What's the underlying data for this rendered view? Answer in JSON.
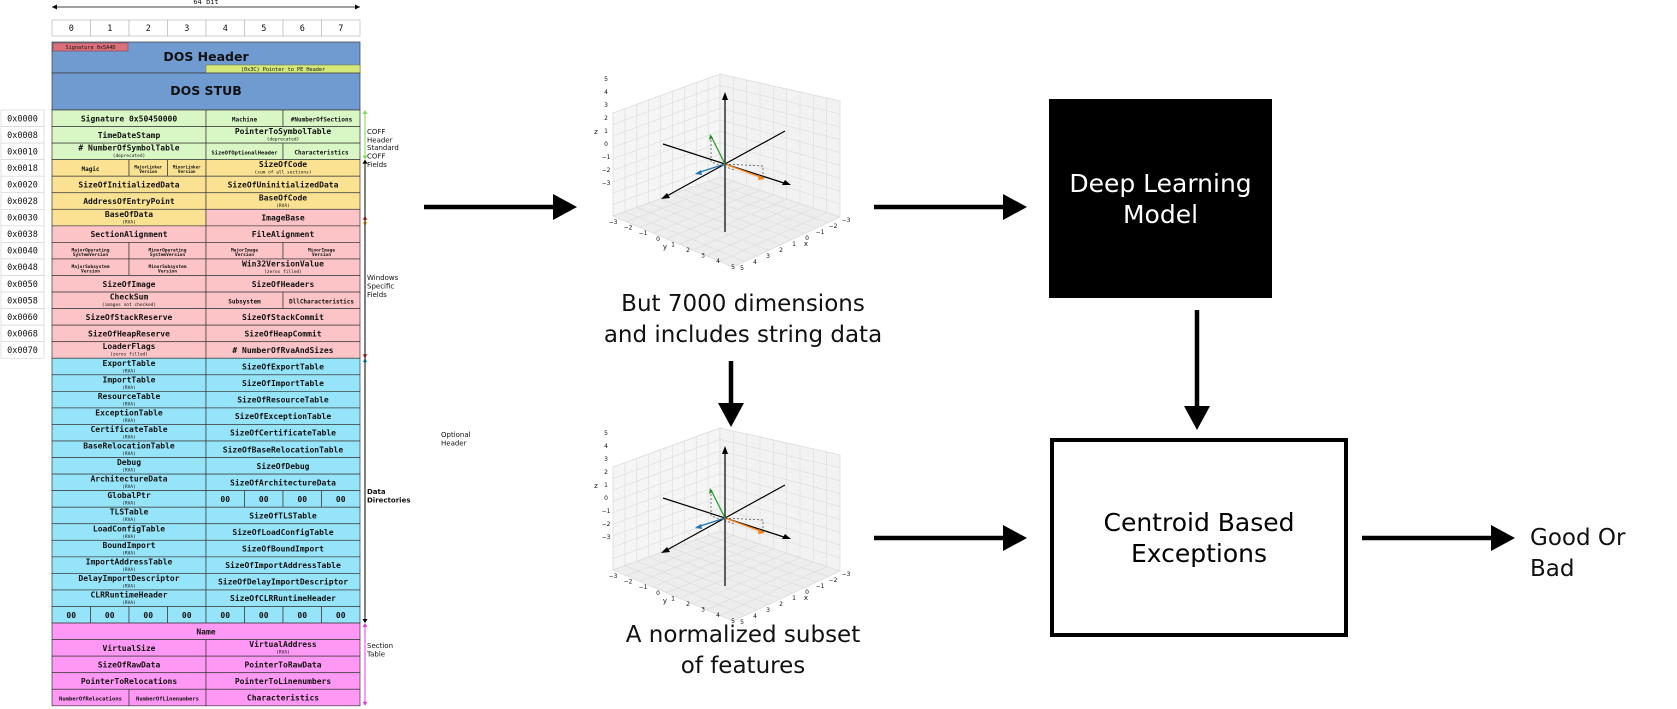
{
  "pe": {
    "width_label": "64 bit",
    "byte_columns": [
      "0",
      "1",
      "2",
      "3",
      "4",
      "5",
      "6",
      "7"
    ],
    "dos": {
      "signature": "Signature 0x5A4D",
      "header": "DOS Header",
      "pointer": "(0x3C) Pointer to PE Header",
      "stub": "DOS STUB"
    },
    "offsets": [
      "0x0000",
      "0x0008",
      "0x0010",
      "0x0018",
      "0x0020",
      "0x0028",
      "0x0030",
      "0x0038",
      "0x0040",
      "0x0048",
      "0x0050",
      "0x0058",
      "0x0060",
      "0x0068",
      "0x0070"
    ],
    "fields": {
      "f_sig": "Signature 0x50450000",
      "f_machine": "Machine",
      "f_nsec": "#NumberOfSections",
      "f_tds": "TimeDateStamp",
      "f_ptst": "PointerToSymbolTable",
      "f_ptst_n": "(deprecated)",
      "f_nost": "# NumberOfSymbolTable",
      "f_nost_n": "(deprecated)",
      "f_sooh": "SizeOfOptionalHeader",
      "f_char": "Characteristics",
      "f_magic": "Magic",
      "f_majlv": "MajorLinker\nVersion",
      "f_minlv": "MinorLinker\nVersion",
      "f_soc": "SizeOfCode",
      "f_soc_n": "(sum of all sections)",
      "f_soid": "SizeOfInitializedData",
      "f_soud": "SizeOfUninitializedData",
      "f_aoep": "AddressOfEntryPoint",
      "f_boc": "BaseOfCode",
      "f_boc_n": "(RVA)",
      "f_bod": "BaseOfData",
      "f_bod_n": "(RVA)",
      "f_ib": "ImageBase",
      "f_sa": "SectionAlignment",
      "f_fa": "FileAlignment",
      "f_majos": "MajorOperating\nSystemVersion",
      "f_minos": "MinorOperating\nSystemVersion",
      "f_majimg": "MajorImage\nVersion",
      "f_minimg": "MinorImage\nVersion",
      "f_majss": "MajorSubsystem\nVersion",
      "f_minss": "MinorSubsystem\nVersion",
      "f_w32": "Win32VersionValue",
      "f_w32_n": "(zeros filled)",
      "f_soi": "SizeOfImage",
      "f_soh": "SizeOfHeaders",
      "f_cs": "CheckSum",
      "f_cs_n": "(images not checked)",
      "f_ss": "Subsystem",
      "f_dllc": "DllCharacteristics",
      "f_sosr": "SizeOfStackReserve",
      "f_sosc": "SizeOfStackCommit",
      "f_sohr": "SizeOfHeapReserve",
      "f_sohc": "SizeOfHeapCommit",
      "f_lf": "LoaderFlags",
      "f_lf_n": "(zeros filled)",
      "f_nrva": "# NumberOfRvaAndSizes",
      "rva": "(RVA)",
      "zero": "00",
      "f_name": "Name",
      "f_vs": "VirtualSize",
      "f_va": "VirtualAddress",
      "f_sord": "SizeOfRawData",
      "f_ptrd": "PointerToRawData",
      "f_ptr": "PointerToRelocations",
      "f_ptl": "PointerToLinenumbers",
      "f_nor": "NumberOfRelocations",
      "f_nol": "NumberOfLinenumbers",
      "f_char2": "Characteristics"
    },
    "data_dirs": [
      [
        "ExportTable",
        "SizeOfExportTable"
      ],
      [
        "ImportTable",
        "SizeOfImportTable"
      ],
      [
        "ResourceTable",
        "SizeOfResourceTable"
      ],
      [
        "ExceptionTable",
        "SizeOfExceptionTable"
      ],
      [
        "CertificateTable",
        "SizeOfCertificateTable"
      ],
      [
        "BaseRelocationTable",
        "SizeOfBaseRelocationTable"
      ],
      [
        "Debug",
        "SizeOfDebug"
      ],
      [
        "ArchitectureData",
        "SizeOfArchitectureData"
      ],
      [
        "GlobalPtr",
        ""
      ],
      [
        "TLSTable",
        "SizeOfTLSTable"
      ],
      [
        "LoadConfigTable",
        "SizeOfLoadConfigTable"
      ],
      [
        "BoundImport",
        "SizeOfBoundImport"
      ],
      [
        "ImportAddressTable",
        "SizeOfImportAddressTable"
      ],
      [
        "DelayImportDescriptor",
        "SizeOfDelayImportDescriptor"
      ],
      [
        "CLRRuntimeHeader",
        "SizeOfCLRRuntimeHeader"
      ]
    ],
    "side_labels": {
      "coff": "COFF\nHeader",
      "std": "Standard\nCOFF\nFields",
      "win": "Windows\nSpecific\nFields",
      "opt": "Optional\nHeader",
      "dd": "Data\nDirectories",
      "sec": "Section\nTable"
    }
  },
  "plots": {
    "z_ticks": [
      "5",
      "4",
      "3",
      "2",
      "1",
      "0",
      "−1",
      "−2",
      "−3"
    ],
    "y_ticks": [
      "−3",
      "−2",
      "−1",
      "0",
      "1",
      "2",
      "3",
      "4",
      "5"
    ],
    "x_ticks": [
      "−3",
      "−2",
      "−1",
      "0",
      "1",
      "2",
      "3",
      "4",
      "5"
    ],
    "z_label": "z",
    "y_label": "y",
    "x_label": "x"
  },
  "flow": {
    "caption_top": "But 7000 dimensions\nand includes string data",
    "caption_bottom": "A normalized subset\nof features",
    "deep_learning": "Deep Learning\nModel",
    "centroid": "Centroid Based\nExceptions",
    "result": "Good Or Bad"
  },
  "colors": {
    "dos": "#6f9bd1",
    "dos_sig": "#d9707a",
    "dos_ptr": "#d8e77a",
    "coff": "#d8f7c4",
    "std": "#fbe293",
    "win": "#fcc4c6",
    "dd": "#96e4f9",
    "sec": "#fe98f4",
    "grid_line": "#3a3a3a",
    "arrow": "#000000",
    "axis_blue": "#1f77b4",
    "axis_orange": "#ff7f0e",
    "axis_green": "#2ca02c",
    "coff_mark": "#7ed957",
    "std_mark": "#e8b923",
    "win_mark": "#e23c3c",
    "dd_mark": "#20b7e8",
    "sec_mark": "#e040d8"
  }
}
